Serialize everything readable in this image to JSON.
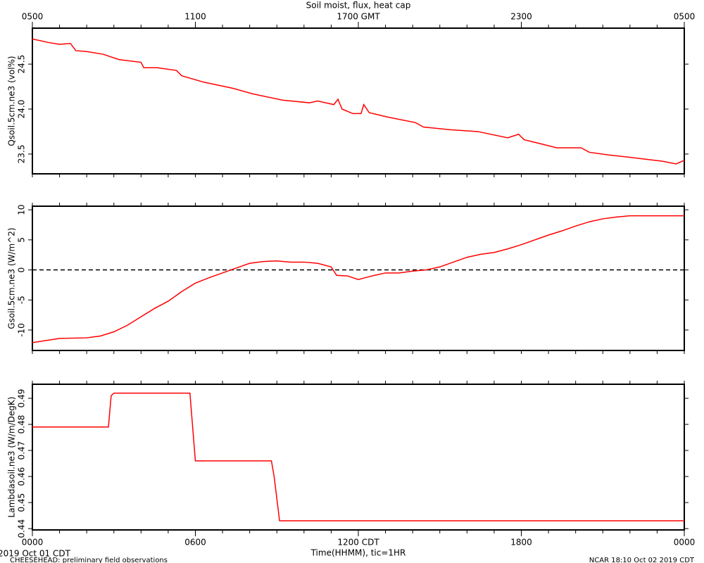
{
  "chart_data": [
    {
      "type": "line",
      "title": "Soil moist, flux, heat cap",
      "ylabel": "Qsoil.5cm.ne3 (vol%)",
      "color": "#ff0000",
      "xlim": [
        0,
        24
      ],
      "ylim": [
        23.28,
        24.9
      ],
      "yticks": [
        23.5,
        {
          "value": 24,
          "label": "24.0"
        },
        24.5
      ],
      "x2ticks": [
        {
          "value": 0,
          "label": "0500"
        },
        {
          "value": 6,
          "label": "1100"
        },
        {
          "value": 12,
          "label": "1700 GMT"
        },
        {
          "value": 18,
          "label": "2300"
        },
        {
          "value": 24,
          "label": "0500"
        }
      ],
      "xminorticks": [
        0,
        1,
        2,
        3,
        4,
        5,
        6,
        7,
        8,
        9,
        10,
        11,
        12,
        13,
        14,
        15,
        16,
        17,
        18,
        19,
        20,
        21,
        22,
        23,
        24
      ],
      "x": [
        0,
        0.6,
        1,
        1.4,
        1.6,
        2,
        2.6,
        3.2,
        4,
        4.1,
        4.6,
        5.3,
        5.5,
        6.3,
        7.4,
        8.1,
        9.2,
        10.2,
        10.5,
        11.1,
        11.25,
        11.4,
        11.8,
        12.1,
        12.2,
        12.4,
        13.1,
        14.1,
        14.4,
        15.4,
        16.4,
        17.5,
        17.9,
        18.1,
        19.3,
        20.2,
        20.5,
        21.2,
        22.1,
        23.2,
        23.7,
        24
      ],
      "values": [
        24.78,
        24.74,
        24.72,
        24.73,
        24.65,
        24.64,
        24.61,
        24.55,
        24.52,
        24.46,
        24.46,
        24.43,
        24.37,
        24.3,
        24.23,
        24.17,
        24.1,
        24.07,
        24.09,
        24.05,
        24.11,
        24.0,
        23.95,
        23.95,
        24.05,
        23.96,
        23.91,
        23.85,
        23.8,
        23.77,
        23.75,
        23.68,
        23.72,
        23.66,
        23.57,
        23.57,
        23.52,
        23.49,
        23.46,
        23.42,
        23.39,
        23.43
      ]
    },
    {
      "type": "line",
      "ylabel": "Gsoil.5cm.ne3 (W/m^2)",
      "color": "#ff0000",
      "xlim": [
        0,
        24
      ],
      "ylim": [
        -13.4,
        10.6
      ],
      "yticks": [
        -10,
        -5,
        0,
        5,
        10
      ],
      "hline": 0,
      "xminorticks": [
        0,
        1,
        2,
        3,
        4,
        5,
        6,
        7,
        8,
        9,
        10,
        11,
        12,
        13,
        14,
        15,
        16,
        17,
        18,
        19,
        20,
        21,
        22,
        23,
        24
      ],
      "x": [
        0,
        1,
        2,
        2.5,
        3,
        3.5,
        4,
        4.5,
        5,
        5.5,
        6,
        6.5,
        7,
        7.5,
        8,
        8.5,
        9,
        9.5,
        10,
        10.5,
        11,
        11.2,
        11.6,
        12,
        12.5,
        13,
        13.5,
        14,
        14.5,
        15,
        15.5,
        16,
        16.5,
        17,
        17.5,
        18,
        18.5,
        19,
        19.5,
        20,
        20.5,
        21,
        21.5,
        22,
        22.5,
        23,
        24
      ],
      "values": [
        -12.1,
        -11.4,
        -11.3,
        -11.0,
        -10.3,
        -9.2,
        -7.8,
        -6.4,
        -5.2,
        -3.6,
        -2.2,
        -1.3,
        -0.5,
        0.3,
        1.1,
        1.4,
        1.5,
        1.3,
        1.3,
        1.1,
        0.5,
        -0.9,
        -1.0,
        -1.6,
        -1.0,
        -0.5,
        -0.5,
        -0.2,
        0.0,
        0.5,
        1.3,
        2.1,
        2.6,
        2.9,
        3.5,
        4.2,
        5.0,
        5.8,
        6.5,
        7.3,
        8.0,
        8.5,
        8.8,
        9.0,
        9.0,
        9.0,
        9.0
      ]
    },
    {
      "type": "line",
      "ylabel": "Lambdasoil.ne3 (W/m/DegK)",
      "xlabel": "Time(HHMM), tic=1HR",
      "color": "#ff0000",
      "xlim": [
        0,
        24
      ],
      "ylim": [
        0.4395,
        0.4954
      ],
      "yticks": [
        0.44,
        0.45,
        0.46,
        0.47,
        0.48,
        0.49
      ],
      "xticks": [
        {
          "value": 0,
          "label": "0000"
        },
        {
          "value": 6,
          "label": "0600"
        },
        {
          "value": 12,
          "label": "1200 CDT"
        },
        {
          "value": 18,
          "label": "1800"
        },
        {
          "value": 24,
          "label": "0000"
        }
      ],
      "xminorticks": [
        0,
        1,
        2,
        3,
        4,
        5,
        6,
        7,
        8,
        9,
        10,
        11,
        12,
        13,
        14,
        15,
        16,
        17,
        18,
        19,
        20,
        21,
        22,
        23,
        24
      ],
      "x": [
        0,
        2.8,
        2.9,
        3.0,
        5.8,
        6.0,
        8.8,
        8.9,
        9.1,
        24
      ],
      "values": [
        0.479,
        0.479,
        0.491,
        0.492,
        0.492,
        0.466,
        0.466,
        0.46,
        0.443,
        0.443
      ]
    }
  ],
  "footer": {
    "date": "2019 Oct 01 CDT",
    "project": "CHEESEHEAD: preliminary field observations",
    "credit": "NCAR 18:10 Oct 02 2019 CDT"
  }
}
